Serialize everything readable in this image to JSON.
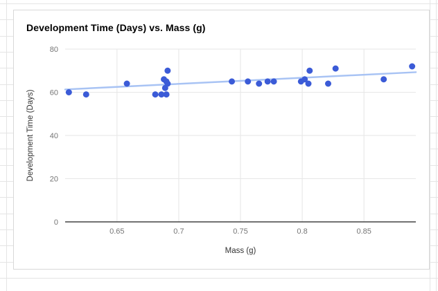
{
  "chart_data": {
    "type": "scatter",
    "title": "Development Time (Days) vs. Mass (g)",
    "xlabel": "Mass (g)",
    "ylabel": "Development Time (Days)",
    "xlim": [
      0.608,
      0.892
    ],
    "ylim": [
      0,
      80
    ],
    "x_ticks": {
      "values": [
        0.65,
        0.7,
        0.75,
        0.8,
        0.85
      ],
      "labels": [
        "0.65",
        "0.7",
        "0.75",
        "0.8",
        "0.85"
      ]
    },
    "y_ticks": {
      "values": [
        0,
        20,
        40,
        60,
        80
      ],
      "labels": [
        "0",
        "20",
        "40",
        "60",
        "80"
      ]
    },
    "grid": true,
    "legend": "none",
    "series": [
      {
        "color": "#3b5bd7",
        "marker": "circle",
        "points": [
          [
            0.611,
            60
          ],
          [
            0.625,
            59
          ],
          [
            0.658,
            64
          ],
          [
            0.681,
            59
          ],
          [
            0.686,
            59
          ],
          [
            0.69,
            59
          ],
          [
            0.688,
            66
          ],
          [
            0.69,
            65
          ],
          [
            0.691,
            64
          ],
          [
            0.689,
            62
          ],
          [
            0.691,
            70
          ],
          [
            0.743,
            65
          ],
          [
            0.756,
            65
          ],
          [
            0.765,
            64
          ],
          [
            0.772,
            65
          ],
          [
            0.777,
            65
          ],
          [
            0.799,
            65
          ],
          [
            0.802,
            66
          ],
          [
            0.805,
            64
          ],
          [
            0.806,
            70
          ],
          [
            0.821,
            64
          ],
          [
            0.827,
            71
          ],
          [
            0.866,
            66
          ],
          [
            0.889,
            72
          ]
        ]
      }
    ],
    "trendline": {
      "type": "linear",
      "color": "#a8c3f4",
      "x1": 0.608,
      "y1": 61.3,
      "x2": 0.892,
      "y2": 69.3
    }
  },
  "colors": {
    "point": "#3b5bd7",
    "trend_line": "#a8c3f4",
    "plot_gridline": "#e6e6e6",
    "axis_line": "#424242",
    "tick_text": "#757575",
    "axis_title_text": "#333333",
    "sheet_gridline": "#e4e4e4",
    "chart_border": "#d8d8d8"
  }
}
